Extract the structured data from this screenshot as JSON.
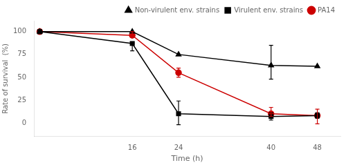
{
  "chart_data": {
    "type": "line",
    "x": [
      0,
      16,
      24,
      40,
      48
    ],
    "series": [
      {
        "name": "Non-virulent env. strains",
        "color": "#000000",
        "marker": "triangle",
        "values": [
          100,
          100,
          75,
          63,
          62
        ],
        "yerr_low": [
          0,
          0,
          0,
          15,
          0
        ],
        "yerr_high": [
          0,
          0,
          0,
          22,
          0
        ]
      },
      {
        "name": "Virulent env. strains",
        "color": "#000000",
        "marker": "square",
        "values": [
          100,
          87,
          10,
          7,
          8
        ],
        "yerr_low": [
          0,
          8,
          12,
          4,
          3
        ],
        "yerr_high": [
          0,
          0,
          14,
          4,
          3
        ]
      },
      {
        "name": "PA14",
        "color": "#cc0000",
        "marker": "circle",
        "values": [
          100,
          96,
          55,
          10,
          8
        ],
        "yerr_low": [
          0,
          2,
          5,
          3,
          9
        ],
        "yerr_high": [
          0,
          4,
          5,
          7,
          7
        ]
      }
    ],
    "xlabel": "Time (h)",
    "ylabel": "Rate of survival  (%)",
    "xlim": [
      -1,
      52
    ],
    "ylim": [
      -15,
      112
    ],
    "xticks": [
      16,
      24,
      40,
      48
    ],
    "yticks": [
      0,
      25,
      50,
      75,
      100
    ],
    "grid": false,
    "legend": "upper right"
  }
}
